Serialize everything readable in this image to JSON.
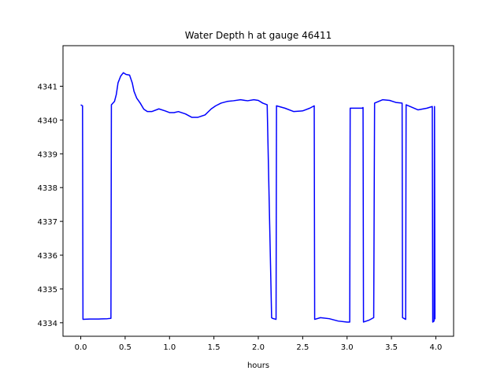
{
  "chart_data": {
    "type": "line",
    "title": "Water Depth h at gauge 46411",
    "xlabel": "hours",
    "ylabel": "",
    "xlim": [
      -0.2,
      4.2
    ],
    "ylim": [
      4333.6,
      4342.2
    ],
    "xticks": [
      0.0,
      0.5,
      1.0,
      1.5,
      2.0,
      2.5,
      3.0,
      3.5,
      4.0
    ],
    "xtick_labels": [
      "0.0",
      "0.5",
      "1.0",
      "1.5",
      "2.0",
      "2.5",
      "3.0",
      "3.5",
      "4.0"
    ],
    "yticks": [
      4334,
      4335,
      4336,
      4337,
      4338,
      4339,
      4340,
      4341
    ],
    "ytick_labels": [
      "4334",
      "4335",
      "4336",
      "4337",
      "4338",
      "4339",
      "4340",
      "4341"
    ],
    "grid": false,
    "series": [
      {
        "name": "",
        "color": "#0000ff",
        "x": [
          0.0,
          0.02,
          0.025,
          0.1,
          0.2,
          0.3,
          0.34,
          0.345,
          0.38,
          0.4,
          0.42,
          0.45,
          0.48,
          0.51,
          0.55,
          0.58,
          0.6,
          0.63,
          0.67,
          0.71,
          0.75,
          0.8,
          0.88,
          0.95,
          1.0,
          1.05,
          1.1,
          1.18,
          1.25,
          1.32,
          1.4,
          1.47,
          1.52,
          1.58,
          1.65,
          1.72,
          1.8,
          1.85,
          1.88,
          1.95,
          2.0,
          2.05,
          2.1,
          2.15,
          2.16,
          2.2,
          2.205,
          2.3,
          2.4,
          2.5,
          2.58,
          2.63,
          2.635,
          2.7,
          2.8,
          2.9,
          3.0,
          3.03,
          3.035,
          3.1,
          3.17,
          3.18,
          3.185,
          3.25,
          3.3,
          3.31,
          3.4,
          3.48,
          3.55,
          3.62,
          3.625,
          3.66,
          3.665,
          3.8,
          3.9,
          3.96,
          3.965,
          3.98,
          3.985,
          3.99
        ],
        "y": [
          4340.45,
          4340.42,
          4334.1,
          4334.11,
          4334.11,
          4334.12,
          4334.13,
          4340.45,
          4340.55,
          4340.75,
          4341.1,
          4341.3,
          4341.4,
          4341.35,
          4341.33,
          4341.1,
          4340.85,
          4340.65,
          4340.5,
          4340.32,
          4340.25,
          4340.25,
          4340.33,
          4340.27,
          4340.22,
          4340.22,
          4340.25,
          4340.18,
          4340.08,
          4340.08,
          4340.15,
          4340.33,
          4340.42,
          4340.5,
          4340.55,
          4340.57,
          4340.6,
          4340.58,
          4340.57,
          4340.6,
          4340.58,
          4340.5,
          4340.45,
          4334.15,
          4334.13,
          4334.1,
          4340.42,
          4340.35,
          4340.25,
          4340.27,
          4340.35,
          4340.42,
          4334.1,
          4334.15,
          4334.12,
          4334.05,
          4334.02,
          4334.02,
          4340.35,
          4340.35,
          4340.35,
          4340.37,
          4334.02,
          4334.08,
          4334.15,
          4340.5,
          4340.6,
          4340.58,
          4340.52,
          4340.5,
          4334.15,
          4334.1,
          4340.45,
          4340.3,
          4340.35,
          4340.4,
          4334.02,
          4334.05,
          4340.4,
          4334.1
        ]
      }
    ]
  }
}
